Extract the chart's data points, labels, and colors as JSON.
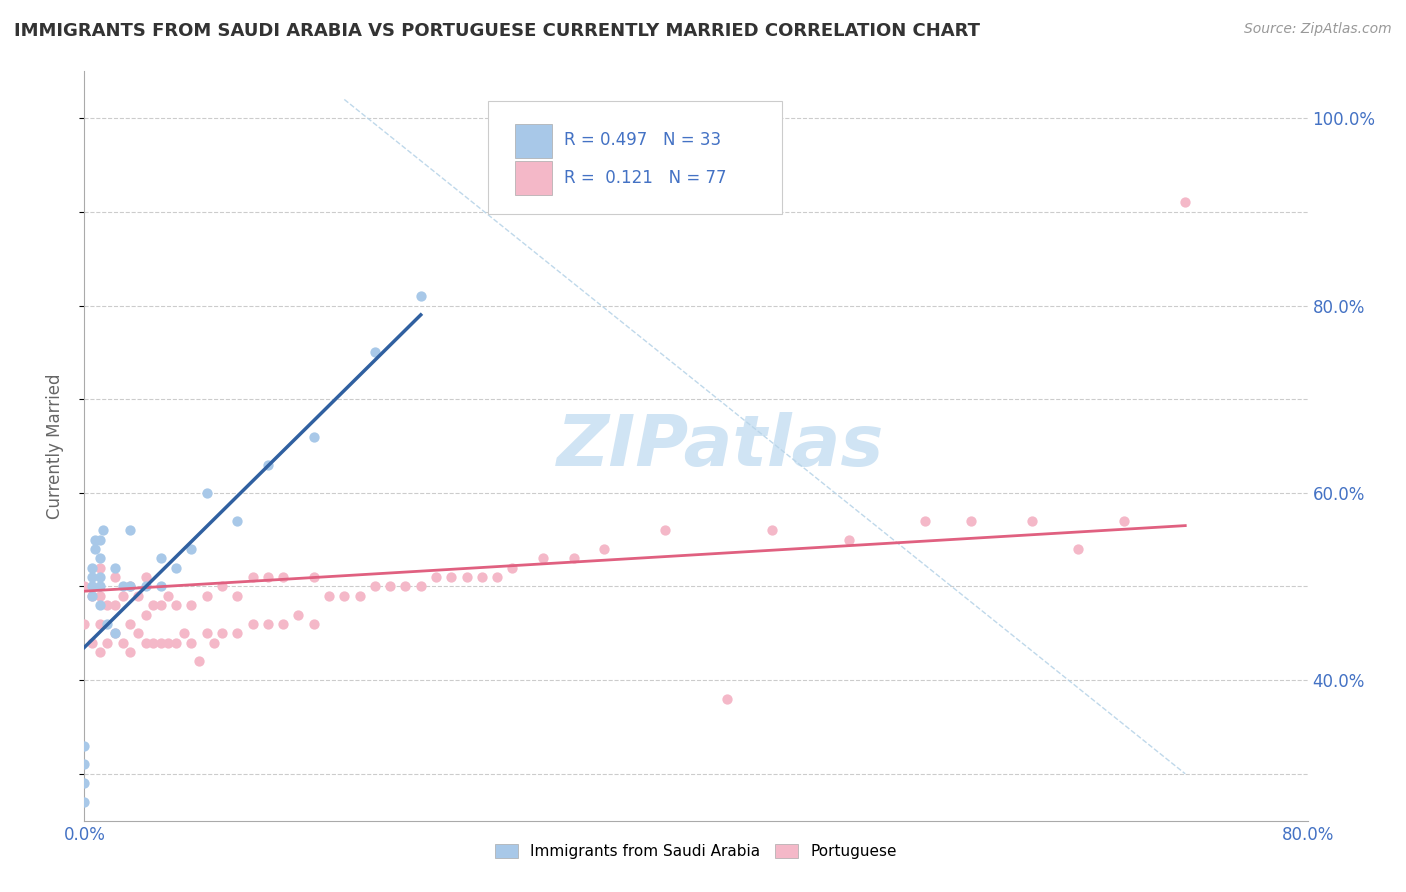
{
  "title": "IMMIGRANTS FROM SAUDI ARABIA VS PORTUGUESE CURRENTLY MARRIED CORRELATION CHART",
  "source_text": "Source: ZipAtlas.com",
  "ylabel": "Currently Married",
  "xlim": [
    0.0,
    0.8
  ],
  "ylim": [
    0.25,
    1.05
  ],
  "color_saudi": "#a8c8e8",
  "color_portuguese": "#f4b8c8",
  "line_color_saudi": "#3060a0",
  "line_color_portuguese": "#e06080",
  "ref_line_color": "#b8d4e8",
  "watermark_color": "#d0e4f4",
  "saudi_scatter_x": [
    0.0,
    0.0,
    0.0,
    0.0,
    0.005,
    0.005,
    0.005,
    0.005,
    0.007,
    0.007,
    0.01,
    0.01,
    0.01,
    0.01,
    0.01,
    0.012,
    0.015,
    0.02,
    0.02,
    0.025,
    0.03,
    0.03,
    0.04,
    0.05,
    0.05,
    0.06,
    0.07,
    0.08,
    0.1,
    0.12,
    0.15,
    0.19,
    0.22
  ],
  "saudi_scatter_y": [
    0.27,
    0.29,
    0.31,
    0.33,
    0.49,
    0.5,
    0.51,
    0.52,
    0.54,
    0.55,
    0.48,
    0.5,
    0.51,
    0.53,
    0.55,
    0.56,
    0.46,
    0.45,
    0.52,
    0.5,
    0.5,
    0.56,
    0.5,
    0.5,
    0.53,
    0.52,
    0.54,
    0.6,
    0.57,
    0.63,
    0.66,
    0.75,
    0.81
  ],
  "portuguese_scatter_x": [
    0.0,
    0.0,
    0.005,
    0.005,
    0.01,
    0.01,
    0.01,
    0.01,
    0.015,
    0.015,
    0.02,
    0.02,
    0.02,
    0.025,
    0.025,
    0.03,
    0.03,
    0.03,
    0.035,
    0.035,
    0.04,
    0.04,
    0.04,
    0.045,
    0.045,
    0.05,
    0.05,
    0.055,
    0.055,
    0.06,
    0.06,
    0.065,
    0.07,
    0.07,
    0.075,
    0.08,
    0.08,
    0.085,
    0.09,
    0.09,
    0.1,
    0.1,
    0.11,
    0.11,
    0.12,
    0.12,
    0.13,
    0.13,
    0.14,
    0.15,
    0.15,
    0.16,
    0.17,
    0.18,
    0.19,
    0.2,
    0.21,
    0.22,
    0.23,
    0.24,
    0.25,
    0.26,
    0.27,
    0.28,
    0.3,
    0.32,
    0.34,
    0.38,
    0.42,
    0.45,
    0.5,
    0.55,
    0.58,
    0.62,
    0.65,
    0.68,
    0.72
  ],
  "portuguese_scatter_y": [
    0.46,
    0.5,
    0.44,
    0.49,
    0.43,
    0.46,
    0.49,
    0.52,
    0.44,
    0.48,
    0.45,
    0.48,
    0.51,
    0.44,
    0.49,
    0.43,
    0.46,
    0.5,
    0.45,
    0.49,
    0.44,
    0.47,
    0.51,
    0.44,
    0.48,
    0.44,
    0.48,
    0.44,
    0.49,
    0.44,
    0.48,
    0.45,
    0.44,
    0.48,
    0.42,
    0.45,
    0.49,
    0.44,
    0.45,
    0.5,
    0.45,
    0.49,
    0.46,
    0.51,
    0.46,
    0.51,
    0.46,
    0.51,
    0.47,
    0.46,
    0.51,
    0.49,
    0.49,
    0.49,
    0.5,
    0.5,
    0.5,
    0.5,
    0.51,
    0.51,
    0.51,
    0.51,
    0.51,
    0.52,
    0.53,
    0.53,
    0.54,
    0.56,
    0.38,
    0.56,
    0.55,
    0.57,
    0.57,
    0.57,
    0.54,
    0.57,
    0.91
  ],
  "saudi_line_x": [
    0.0,
    0.22
  ],
  "saudi_line_y": [
    0.435,
    0.79
  ],
  "portuguese_line_x": [
    0.0,
    0.72
  ],
  "portuguese_line_y": [
    0.495,
    0.565
  ],
  "ref_line_x": [
    0.17,
    0.72
  ],
  "ref_line_y": [
    1.02,
    0.3
  ]
}
